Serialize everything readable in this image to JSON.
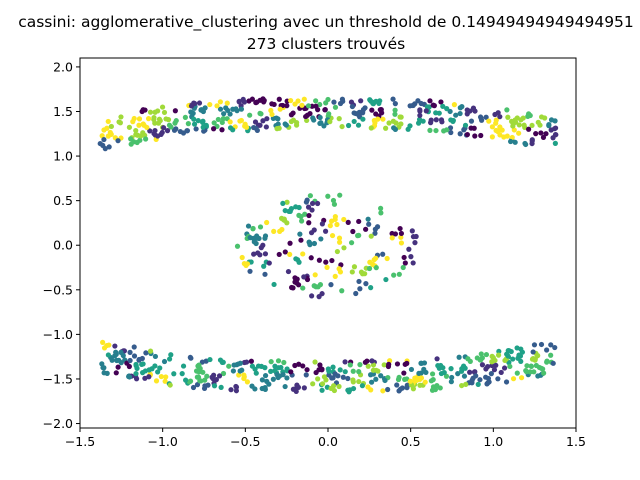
{
  "chart_data": {
    "type": "scatter",
    "title": "cassini: agglomerative_clustering avec un threshold de 0.14949494949494951",
    "subtitle": "273 clusters trouvés",
    "xlabel": "",
    "ylabel": "",
    "xlim": [
      -1.5,
      1.5
    ],
    "ylim": [
      -2.05,
      2.1
    ],
    "xticks": [
      -1.5,
      -1.0,
      -0.5,
      0.0,
      0.5,
      1.0,
      1.5
    ],
    "yticks": [
      -2.0,
      -1.5,
      -1.0,
      -0.5,
      0.0,
      0.5,
      1.0,
      1.5,
      2.0
    ],
    "xtick_labels": [
      "−1.5",
      "−1.0",
      "−0.5",
      "0.0",
      "0.5",
      "1.0",
      "1.5"
    ],
    "ytick_labels": [
      "−2.0",
      "−1.5",
      "−1.0",
      "−0.5",
      "0.0",
      "0.5",
      "1.0",
      "1.5",
      "2.0"
    ],
    "colormap": "viridis",
    "colormap_colors": [
      "#440154",
      "#46327e",
      "#365c8d",
      "#277f8e",
      "#1fa187",
      "#4ac16d",
      "#a0da39",
      "#fde725"
    ],
    "grid": false,
    "legend": "none",
    "regions": [
      {
        "shape": "upper-band",
        "x_range": [
          -1.38,
          1.38
        ],
        "y_range": [
          0.68,
          1.9
        ],
        "approx_points": 420
      },
      {
        "shape": "center-ellipse",
        "x_range": [
          -0.55,
          0.55
        ],
        "y_range": [
          -0.58,
          0.58
        ],
        "approx_points": 190
      },
      {
        "shape": "lower-band",
        "x_range": [
          -1.38,
          1.38
        ],
        "y_range": [
          -1.88,
          -0.6
        ],
        "approx_points": 420
      }
    ],
    "seed": 20231
  }
}
